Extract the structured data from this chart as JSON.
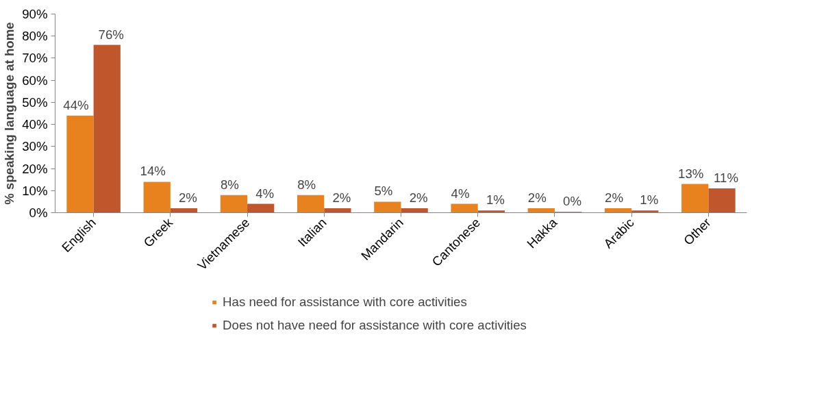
{
  "chart_data": {
    "type": "bar",
    "ylabel": "% speaking language at home",
    "categories": [
      "English",
      "Greek",
      "Vietnamese",
      "Italian",
      "Mandarin",
      "Cantonese",
      "Hakka",
      "Arabic",
      "Other"
    ],
    "series": [
      {
        "name": "Has need for assistance with core activities",
        "color": "#e8821e",
        "values": [
          44,
          14,
          8,
          8,
          5,
          4,
          2,
          2,
          13
        ],
        "value_labels": [
          "44%",
          "14%",
          "8%",
          "8%",
          "5%",
          "4%",
          "2%",
          "2%",
          "13%"
        ]
      },
      {
        "name": "Does not have need for assistance with core activities",
        "color": "#c0562c",
        "values": [
          76,
          2,
          4,
          2,
          2,
          1,
          0.4,
          1,
          11
        ],
        "value_labels": [
          "76%",
          "2%",
          "4%",
          "2%",
          "2%",
          "1%",
          "0%",
          "1%",
          "11%"
        ]
      }
    ],
    "ylim": [
      0,
      90
    ],
    "yticks": [
      {
        "value": 0,
        "label": "0%"
      },
      {
        "value": 10,
        "label": "10%"
      },
      {
        "value": 20,
        "label": "20%"
      },
      {
        "value": 30,
        "label": "30%"
      },
      {
        "value": 40,
        "label": "40%"
      },
      {
        "value": 50,
        "label": "50%"
      },
      {
        "value": 60,
        "label": "60%"
      },
      {
        "value": 70,
        "label": "70%"
      },
      {
        "value": 80,
        "label": "80%"
      },
      {
        "value": 90,
        "label": "90%"
      }
    ],
    "grid": false,
    "legend": "bottom"
  }
}
